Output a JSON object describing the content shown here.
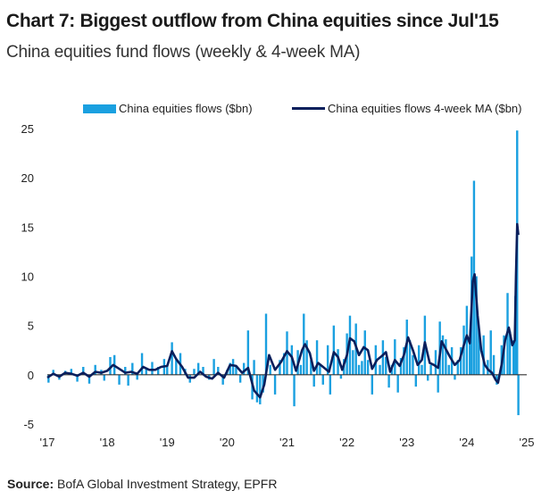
{
  "header": {
    "title": "Chart 7: Biggest outflow from China equities since Jul'15",
    "subtitle": "China equities fund flows (weekly & 4-week MA)"
  },
  "footer": {
    "source_label": "Source:",
    "source_text": "BofA Global Investment Strategy, EPFR"
  },
  "chart_data": {
    "type": "bar",
    "title": "Chart 7: Biggest outflow from China equities since Jul'15",
    "subtitle": "China equities fund flows (weekly & 4-week MA)",
    "xlabel": "",
    "ylabel": "",
    "ylim": [
      -5,
      25
    ],
    "yticks": [
      25,
      20,
      15,
      10,
      5,
      0,
      -5
    ],
    "xticks": [
      "'17",
      "'18",
      "'19",
      "'20",
      "'21",
      "'22",
      "'23",
      "'24",
      "'25"
    ],
    "xlim": [
      2017.0,
      2025.0
    ],
    "grid": false,
    "legend_position": "top",
    "colors": {
      "bars": "#1aa0e0",
      "line": "#0a1f5c",
      "zero_line": "#333333"
    },
    "series": [
      {
        "name": "China equities flows ($bn)",
        "kind": "bar",
        "points": [
          [
            2017.02,
            -0.8
          ],
          [
            2017.1,
            0.5
          ],
          [
            2017.2,
            -0.5
          ],
          [
            2017.3,
            0.4
          ],
          [
            2017.4,
            0.6
          ],
          [
            2017.5,
            -0.7
          ],
          [
            2017.6,
            0.8
          ],
          [
            2017.7,
            -0.9
          ],
          [
            2017.8,
            1.0
          ],
          [
            2017.9,
            0.5
          ],
          [
            2017.95,
            -0.6
          ],
          [
            2018.05,
            1.8
          ],
          [
            2018.12,
            2.0
          ],
          [
            2018.2,
            -1.0
          ],
          [
            2018.3,
            0.8
          ],
          [
            2018.35,
            -1.1
          ],
          [
            2018.42,
            1.2
          ],
          [
            2018.5,
            -0.5
          ],
          [
            2018.58,
            2.2
          ],
          [
            2018.65,
            0.6
          ],
          [
            2018.75,
            1.3
          ],
          [
            2018.85,
            0.8
          ],
          [
            2018.95,
            1.6
          ],
          [
            2019.0,
            1.0
          ],
          [
            2019.08,
            3.3
          ],
          [
            2019.15,
            1.5
          ],
          [
            2019.22,
            2.2
          ],
          [
            2019.3,
            0.6
          ],
          [
            2019.38,
            -0.8
          ],
          [
            2019.45,
            0.6
          ],
          [
            2019.52,
            1.2
          ],
          [
            2019.6,
            0.8
          ],
          [
            2019.7,
            -0.5
          ],
          [
            2019.78,
            1.6
          ],
          [
            2019.85,
            0.8
          ],
          [
            2019.93,
            -1.0
          ],
          [
            2020.0,
            0.5
          ],
          [
            2020.05,
            1.2
          ],
          [
            2020.1,
            1.6
          ],
          [
            2020.15,
            0.9
          ],
          [
            2020.22,
            -0.8
          ],
          [
            2020.28,
            1.2
          ],
          [
            2020.35,
            4.5
          ],
          [
            2020.42,
            -2.5
          ],
          [
            2020.45,
            1.5
          ],
          [
            2020.5,
            -2.8
          ],
          [
            2020.55,
            -3.0
          ],
          [
            2020.6,
            -1.8
          ],
          [
            2020.65,
            6.2
          ],
          [
            2020.72,
            1.0
          ],
          [
            2020.8,
            -2.0
          ],
          [
            2020.88,
            1.5
          ],
          [
            2020.95,
            2.2
          ],
          [
            2021.0,
            4.4
          ],
          [
            2021.08,
            3.0
          ],
          [
            2021.12,
            -3.2
          ],
          [
            2021.18,
            2.5
          ],
          [
            2021.23,
            1.0
          ],
          [
            2021.28,
            6.2
          ],
          [
            2021.33,
            3.5
          ],
          [
            2021.4,
            1.5
          ],
          [
            2021.45,
            -1.2
          ],
          [
            2021.5,
            3.5
          ],
          [
            2021.55,
            1.0
          ],
          [
            2021.6,
            -1.0
          ],
          [
            2021.68,
            3.0
          ],
          [
            2021.72,
            -2.0
          ],
          [
            2021.78,
            5.0
          ],
          [
            2021.85,
            2.6
          ],
          [
            2021.9,
            -0.4
          ],
          [
            2021.95,
            1.6
          ],
          [
            2022.0,
            4.2
          ],
          [
            2022.05,
            6.0
          ],
          [
            2022.1,
            2.5
          ],
          [
            2022.15,
            5.2
          ],
          [
            2022.2,
            1.0
          ],
          [
            2022.25,
            1.4
          ],
          [
            2022.3,
            4.5
          ],
          [
            2022.35,
            1.5
          ],
          [
            2022.42,
            -2.0
          ],
          [
            2022.48,
            3.0
          ],
          [
            2022.55,
            1.0
          ],
          [
            2022.6,
            3.5
          ],
          [
            2022.65,
            1.8
          ],
          [
            2022.7,
            -1.3
          ],
          [
            2022.75,
            1.0
          ],
          [
            2022.8,
            3.6
          ],
          [
            2022.85,
            -1.8
          ],
          [
            2022.9,
            1.7
          ],
          [
            2022.95,
            2.8
          ],
          [
            2023.0,
            5.6
          ],
          [
            2023.05,
            3.5
          ],
          [
            2023.1,
            2.0
          ],
          [
            2023.15,
            -1.2
          ],
          [
            2023.2,
            3.0
          ],
          [
            2023.25,
            1.0
          ],
          [
            2023.3,
            6.0
          ],
          [
            2023.35,
            -0.6
          ],
          [
            2023.4,
            1.0
          ],
          [
            2023.48,
            2.5
          ],
          [
            2023.52,
            -1.8
          ],
          [
            2023.55,
            5.4
          ],
          [
            2023.6,
            4.0
          ],
          [
            2023.65,
            3.6
          ],
          [
            2023.7,
            1.0
          ],
          [
            2023.75,
            2.8
          ],
          [
            2023.8,
            -0.5
          ],
          [
            2023.85,
            1.5
          ],
          [
            2023.9,
            2.8
          ],
          [
            2023.95,
            5.0
          ],
          [
            2024.0,
            7.0
          ],
          [
            2024.05,
            3.5
          ],
          [
            2024.08,
            12.0
          ],
          [
            2024.12,
            19.7
          ],
          [
            2024.16,
            10.0
          ],
          [
            2024.2,
            5.0
          ],
          [
            2024.28,
            4.0
          ],
          [
            2024.35,
            1.5
          ],
          [
            2024.4,
            4.5
          ],
          [
            2024.45,
            2.0
          ],
          [
            2024.5,
            -1.0
          ],
          [
            2024.58,
            3.0
          ],
          [
            2024.62,
            4.0
          ],
          [
            2024.68,
            8.3
          ],
          [
            2024.72,
            4.4
          ],
          [
            2024.78,
            3.5
          ],
          [
            2024.81,
            8.0
          ],
          [
            2024.84,
            24.8
          ],
          [
            2024.86,
            -4.1
          ]
        ]
      },
      {
        "name": "China equities flows 4-week MA ($bn)",
        "kind": "line",
        "points": [
          [
            2017.0,
            -0.3
          ],
          [
            2017.1,
            0.1
          ],
          [
            2017.2,
            -0.2
          ],
          [
            2017.3,
            0.2
          ],
          [
            2017.4,
            0.1
          ],
          [
            2017.5,
            -0.1
          ],
          [
            2017.6,
            0.2
          ],
          [
            2017.7,
            -0.2
          ],
          [
            2017.8,
            0.3
          ],
          [
            2017.9,
            0.2
          ],
          [
            2018.0,
            0.4
          ],
          [
            2018.1,
            1.0
          ],
          [
            2018.2,
            0.6
          ],
          [
            2018.3,
            0.2
          ],
          [
            2018.4,
            0.3
          ],
          [
            2018.5,
            0.1
          ],
          [
            2018.6,
            0.8
          ],
          [
            2018.7,
            0.5
          ],
          [
            2018.8,
            0.5
          ],
          [
            2018.9,
            0.8
          ],
          [
            2019.0,
            0.9
          ],
          [
            2019.08,
            2.4
          ],
          [
            2019.15,
            1.6
          ],
          [
            2019.25,
            0.8
          ],
          [
            2019.35,
            -0.3
          ],
          [
            2019.45,
            -0.3
          ],
          [
            2019.55,
            0.3
          ],
          [
            2019.65,
            -0.2
          ],
          [
            2019.75,
            -0.4
          ],
          [
            2019.85,
            0.2
          ],
          [
            2019.95,
            -0.3
          ],
          [
            2020.05,
            1.0
          ],
          [
            2020.15,
            0.9
          ],
          [
            2020.25,
            0.2
          ],
          [
            2020.35,
            0.7
          ],
          [
            2020.45,
            -1.6
          ],
          [
            2020.55,
            -2.3
          ],
          [
            2020.62,
            -1.0
          ],
          [
            2020.7,
            2.0
          ],
          [
            2020.8,
            0.5
          ],
          [
            2020.9,
            1.3
          ],
          [
            2021.0,
            2.4
          ],
          [
            2021.08,
            1.8
          ],
          [
            2021.15,
            0.4
          ],
          [
            2021.25,
            2.5
          ],
          [
            2021.3,
            3.1
          ],
          [
            2021.38,
            2.2
          ],
          [
            2021.45,
            0.4
          ],
          [
            2021.52,
            1.2
          ],
          [
            2021.6,
            0.8
          ],
          [
            2021.7,
            0.3
          ],
          [
            2021.78,
            2.3
          ],
          [
            2021.85,
            1.8
          ],
          [
            2021.92,
            0.5
          ],
          [
            2022.0,
            2.0
          ],
          [
            2022.05,
            3.7
          ],
          [
            2022.12,
            3.4
          ],
          [
            2022.2,
            2.0
          ],
          [
            2022.28,
            2.8
          ],
          [
            2022.35,
            2.5
          ],
          [
            2022.42,
            0.6
          ],
          [
            2022.5,
            1.5
          ],
          [
            2022.58,
            1.9
          ],
          [
            2022.65,
            2.3
          ],
          [
            2022.72,
            0.3
          ],
          [
            2022.8,
            1.5
          ],
          [
            2022.88,
            0.9
          ],
          [
            2022.95,
            2.0
          ],
          [
            2023.02,
            3.8
          ],
          [
            2023.1,
            2.5
          ],
          [
            2023.18,
            1.0
          ],
          [
            2023.25,
            1.5
          ],
          [
            2023.3,
            3.3
          ],
          [
            2023.38,
            1.2
          ],
          [
            2023.45,
            1.0
          ],
          [
            2023.52,
            0.7
          ],
          [
            2023.58,
            3.4
          ],
          [
            2023.65,
            2.6
          ],
          [
            2023.72,
            1.8
          ],
          [
            2023.8,
            1.0
          ],
          [
            2023.88,
            1.5
          ],
          [
            2023.95,
            3.0
          ],
          [
            2024.0,
            4.0
          ],
          [
            2024.05,
            3.2
          ],
          [
            2024.1,
            9.5
          ],
          [
            2024.13,
            10.2
          ],
          [
            2024.18,
            6.0
          ],
          [
            2024.24,
            2.5
          ],
          [
            2024.3,
            1.0
          ],
          [
            2024.36,
            0.5
          ],
          [
            2024.42,
            0.2
          ],
          [
            2024.48,
            -0.5
          ],
          [
            2024.52,
            -0.8
          ],
          [
            2024.58,
            1.0
          ],
          [
            2024.64,
            3.5
          ],
          [
            2024.7,
            4.8
          ],
          [
            2024.76,
            3.0
          ],
          [
            2024.8,
            3.5
          ],
          [
            2024.82,
            10.0
          ],
          [
            2024.84,
            15.3
          ],
          [
            2024.86,
            14.2
          ]
        ]
      }
    ]
  }
}
